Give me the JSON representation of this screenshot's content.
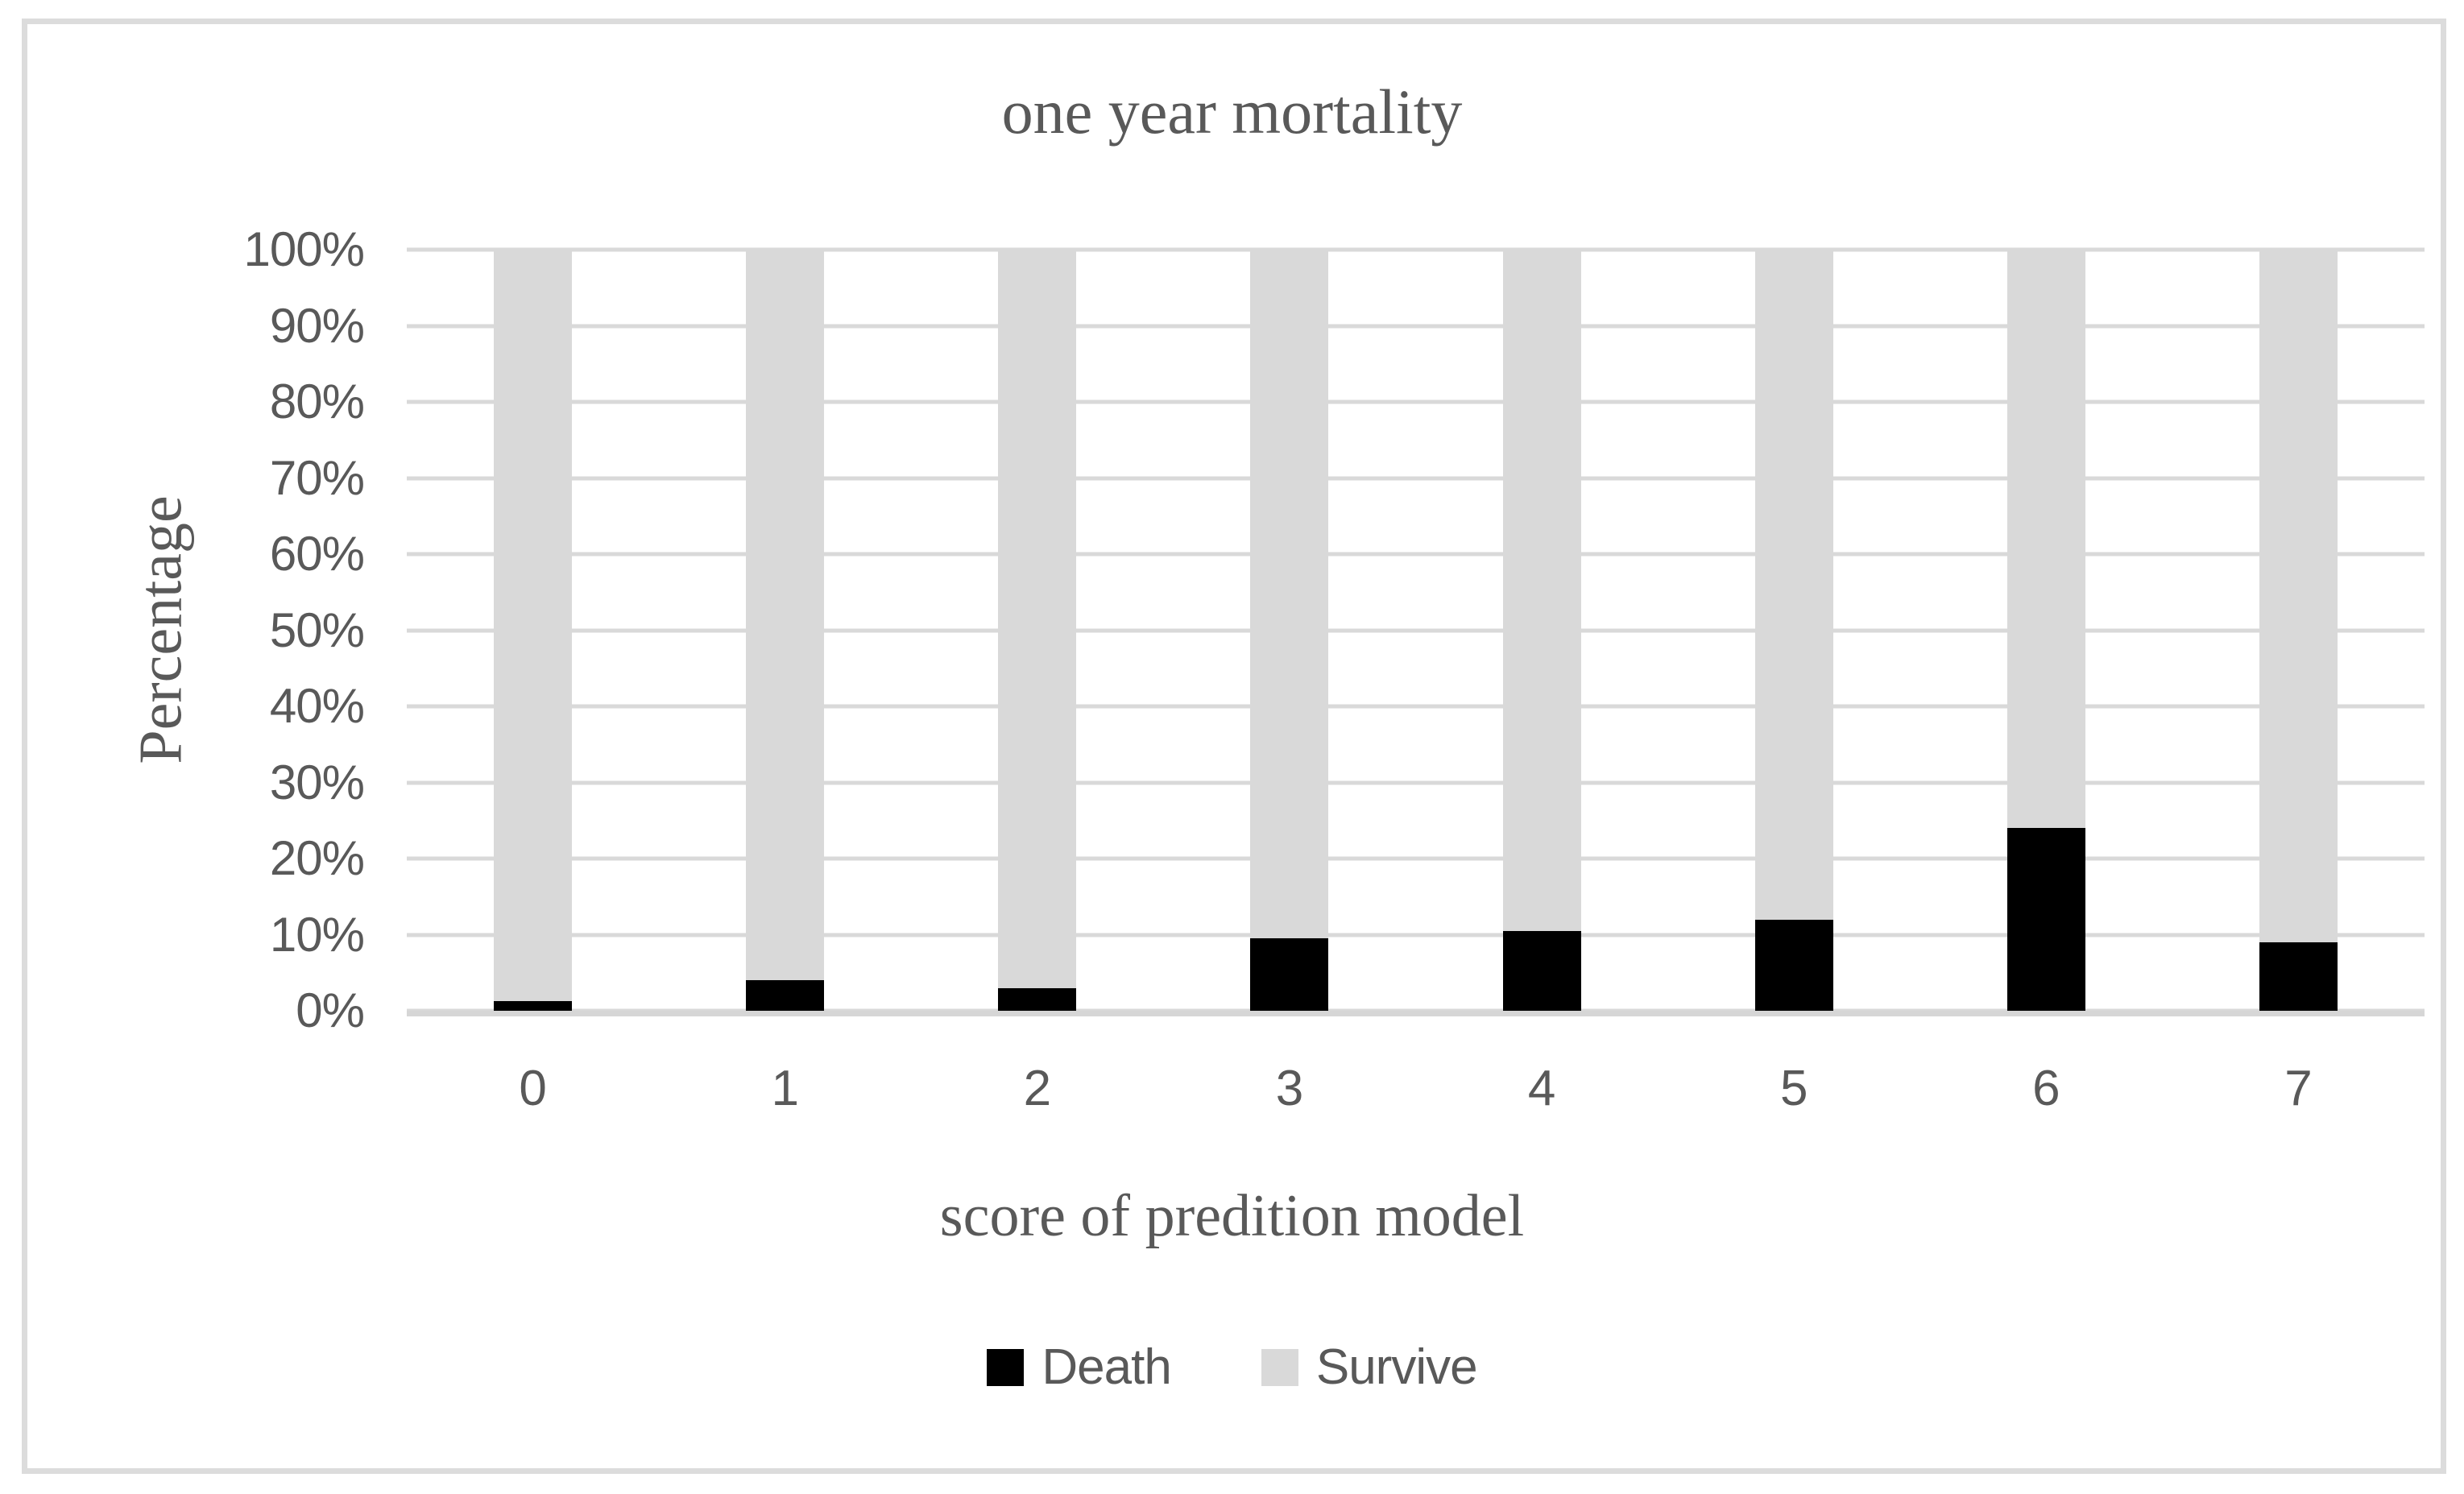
{
  "figure": {
    "title": "one year mortality",
    "y_axis": {
      "title": "Percentage",
      "tick_labels": [
        "100%",
        "90%",
        "80%",
        "70%",
        "60%",
        "50%",
        "40%",
        "30%",
        "20%",
        "10%",
        "0%"
      ]
    },
    "x_axis": {
      "title": "score of predition model",
      "tick_labels": [
        "0",
        "1",
        "2",
        "3",
        "4",
        "5",
        "6",
        "7"
      ]
    },
    "legend": [
      {
        "label": "Death",
        "color": "#000000"
      },
      {
        "label": "Survive",
        "color": "#d9d9d9"
      }
    ]
  },
  "chart_data": {
    "type": "bar",
    "stacked": true,
    "units": "percent",
    "title": "one year mortality",
    "xlabel": "score of predition model",
    "ylabel": "Percentage",
    "categories": [
      "0",
      "1",
      "2",
      "3",
      "4",
      "5",
      "6",
      "7"
    ],
    "series": [
      {
        "name": "Death",
        "color": "#000000",
        "values": [
          1.3,
          4,
          3,
          9.5,
          10.5,
          12,
          24,
          9
        ]
      },
      {
        "name": "Survive",
        "color": "#d9d9d9",
        "values": [
          98.7,
          96,
          97,
          90.5,
          89.5,
          88,
          76,
          91
        ]
      }
    ],
    "ylim": [
      0,
      100
    ],
    "y_tick_step": 10,
    "grid": true,
    "gridline_color": "#d9d9d9",
    "axis_line_color": "#d6d6d6",
    "text_color": "#595959",
    "figure_border_color": "#dcdcdc",
    "background_color": "#ffffff",
    "legend_position": "bottom"
  }
}
